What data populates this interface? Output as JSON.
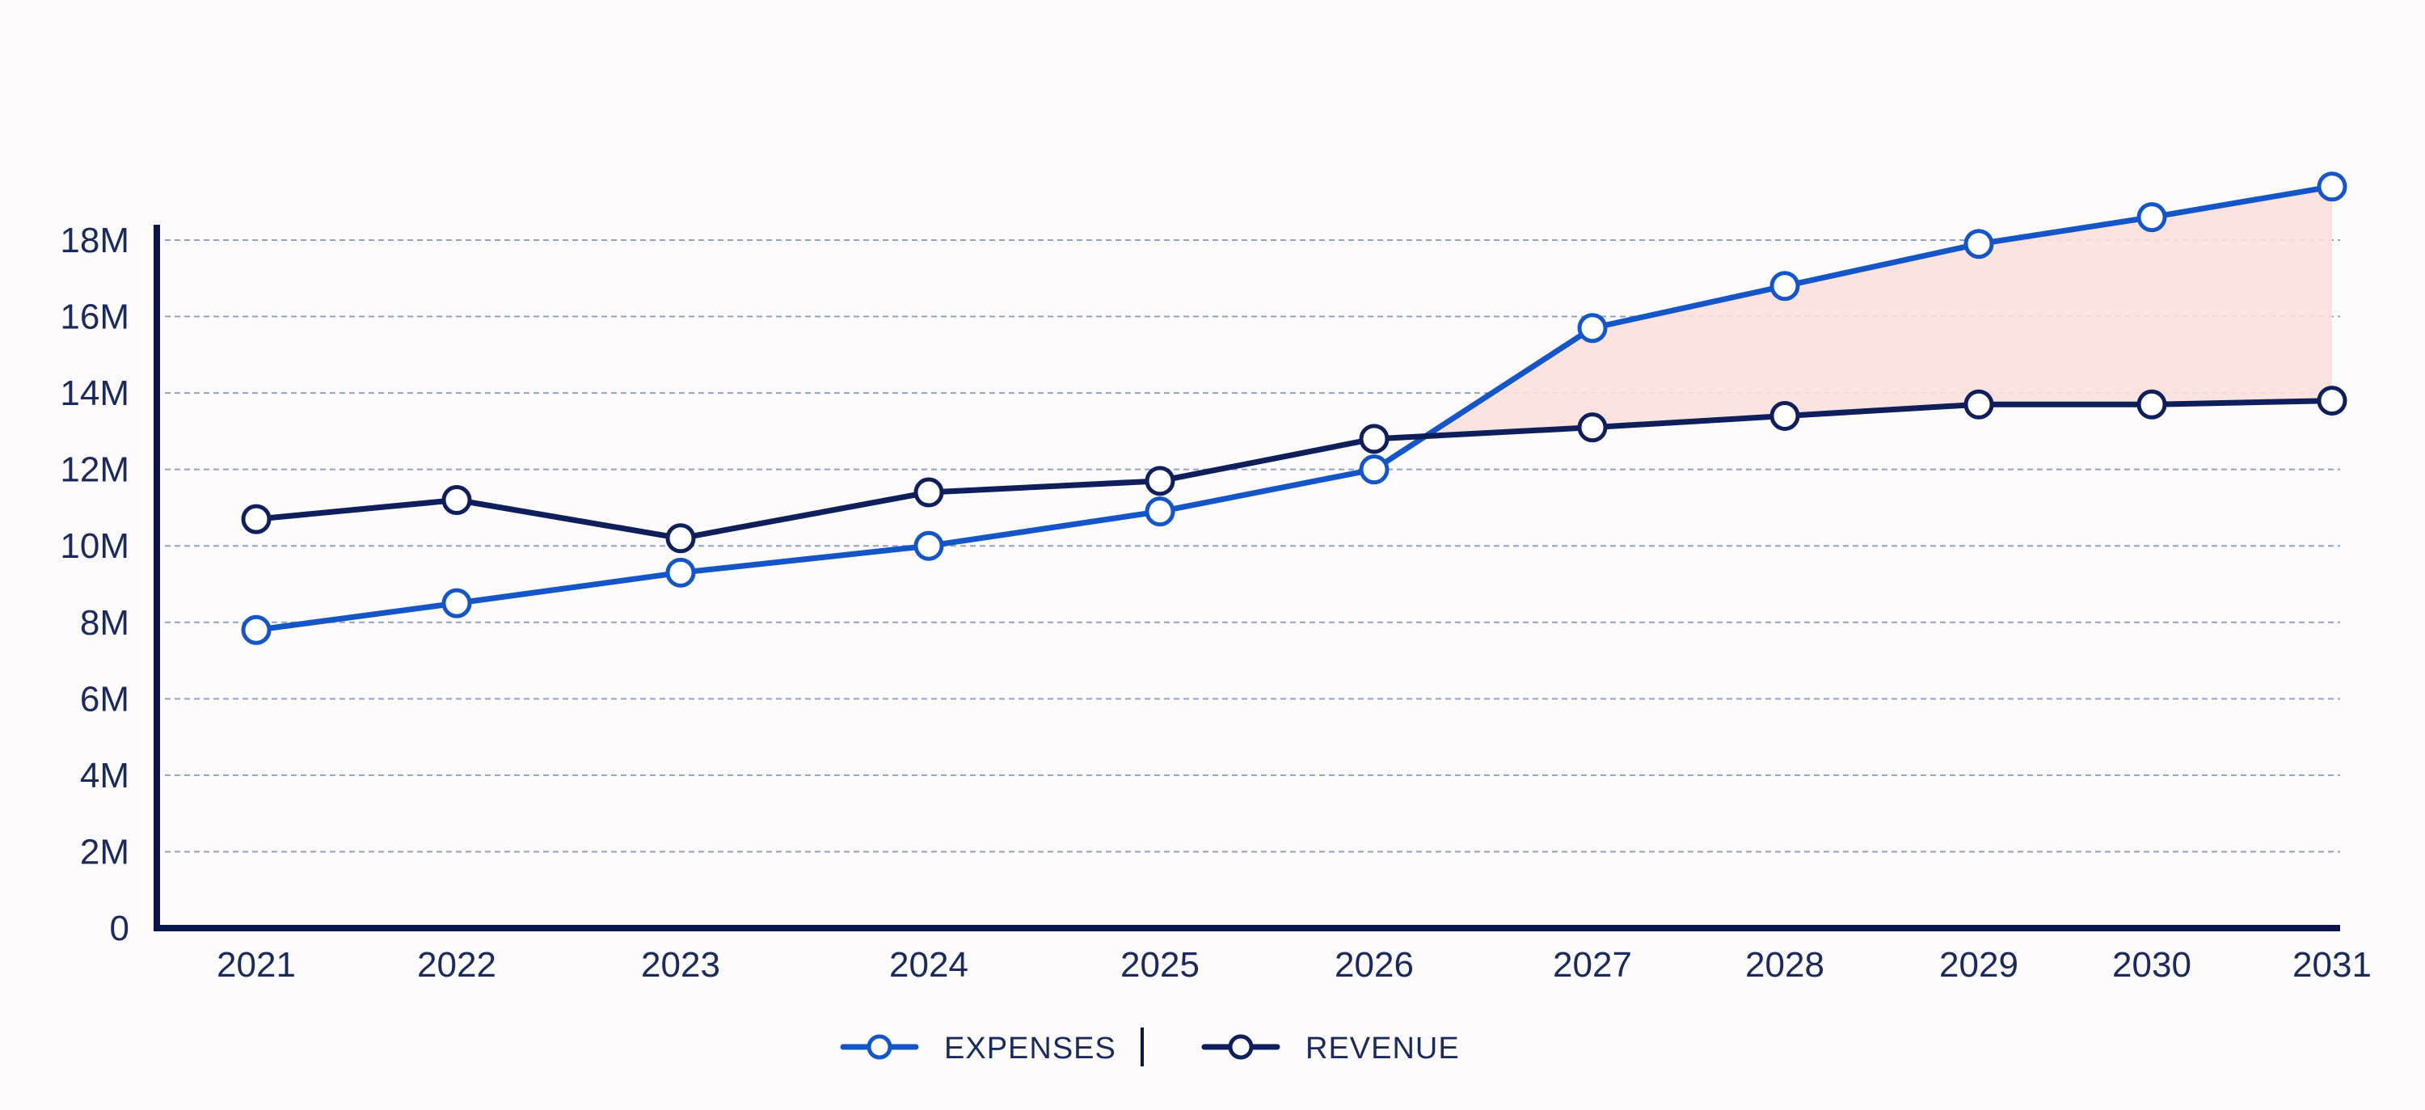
{
  "chart_data": {
    "type": "line",
    "title": "",
    "xlabel": "",
    "ylabel": "",
    "categories": [
      "2021",
      "2022",
      "2023",
      "2024",
      "2025",
      "2026",
      "2027",
      "2028",
      "2029",
      "2030",
      "2031"
    ],
    "series": [
      {
        "name": "EXPENSES",
        "color": "#1456c8",
        "values": [
          7.8,
          8.5,
          9.3,
          10.0,
          10.9,
          12.0,
          15.7,
          16.8,
          17.9,
          18.6,
          19.4
        ]
      },
      {
        "name": "REVENUE",
        "color": "#0f1f5c",
        "values": [
          10.7,
          11.2,
          10.2,
          11.4,
          11.7,
          12.8,
          13.1,
          13.4,
          13.7,
          13.7,
          13.8
        ]
      }
    ],
    "ylim": [
      0,
      18
    ],
    "yticks": [
      0,
      2,
      4,
      6,
      8,
      10,
      12,
      14,
      16,
      18
    ],
    "ytick_labels": [
      "0",
      "2M",
      "4M",
      "6M",
      "8M",
      "10M",
      "12M",
      "14M",
      "16M",
      "18M"
    ],
    "grid": "horizontal dashed",
    "legend_position": "bottom-center",
    "shaded_gap": {
      "between": [
        "EXPENSES",
        "REVENUE"
      ],
      "where": "expenses above revenue",
      "color": "#fde0dd"
    },
    "colors": {
      "axis": "#0c154a",
      "grid": "#7d94b8",
      "text": "#1b2a5c",
      "marker_fill": "#ffffff"
    }
  }
}
